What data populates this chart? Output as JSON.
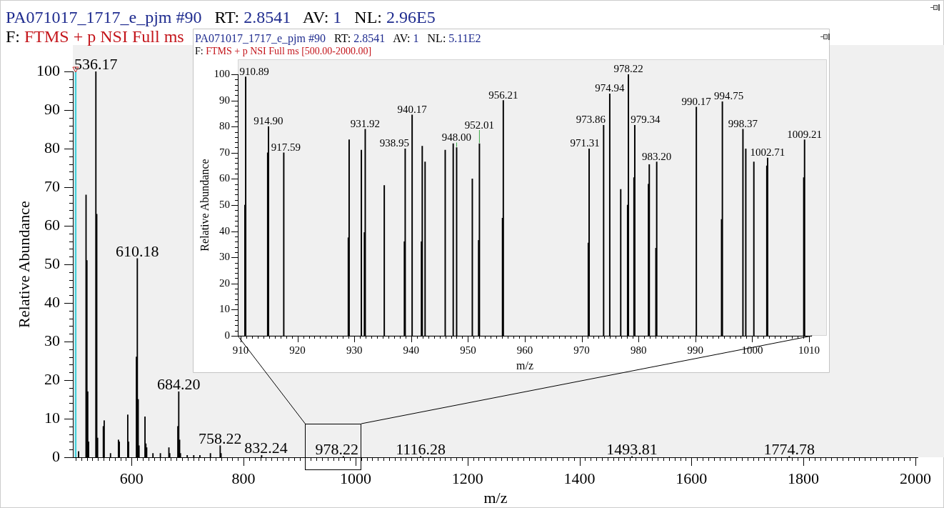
{
  "chart_data": [
    {
      "type": "bar",
      "title": "PA071017_1717_e_pjm #90   RT: 2.8541   AV: 1   NL: 2.96E5",
      "subtitle": "F: FTMS + p NSI Full ms",
      "xlabel": "m/z",
      "ylabel": "Relative Abundance",
      "color": "#000000",
      "x": [
        505.3,
        518.6,
        520.1,
        521.6,
        523.1,
        536.17,
        537.7,
        539.2,
        549.5,
        551,
        562.3,
        576.5,
        578,
        593.1,
        594.6,
        608.6,
        610.18,
        611.7,
        613.2,
        623.9,
        625.4,
        626.9,
        638.1,
        651.4,
        666.6,
        668.1,
        682.6,
        684.2,
        685.7,
        687.2,
        699.3,
        711,
        722,
        740.8,
        758.22,
        759.7,
        832.24,
        978.22,
        1116.28,
        1493.81,
        1774.78
      ],
      "values": [
        1.5,
        68,
        51,
        17,
        4,
        100,
        63,
        5,
        8,
        9.5,
        1,
        4.5,
        4,
        11,
        4,
        26,
        51.5,
        15,
        3,
        10.5,
        3.5,
        2.5,
        1,
        1,
        2.5,
        1,
        8,
        17,
        4.5,
        1,
        0.5,
        0.5,
        0.5,
        1,
        3,
        1,
        0.5,
        0.2,
        0.2,
        0.2,
        0.2
      ],
      "xlim": [
        500,
        2000
      ],
      "ylim": [
        0,
        100
      ],
      "xticks": [
        {
          "value": 500,
          "label": null
        },
        {
          "value": 510,
          "label": null
        },
        {
          "value": 520,
          "label": null
        },
        {
          "value": 530,
          "label": null
        },
        {
          "value": 540,
          "label": null
        },
        {
          "value": 550,
          "label": null
        },
        {
          "value": 560,
          "label": null
        },
        {
          "value": 570,
          "label": null
        },
        {
          "value": 580,
          "label": null
        },
        {
          "value": 590,
          "label": null
        },
        600,
        {
          "value": 610,
          "label": null
        },
        {
          "value": 620,
          "label": null
        },
        {
          "value": 630,
          "label": null
        },
        {
          "value": 640,
          "label": null
        },
        {
          "value": 650,
          "label": null
        },
        {
          "value": 660,
          "label": null
        },
        {
          "value": 670,
          "label": null
        },
        {
          "value": 680,
          "label": null
        },
        {
          "value": 690,
          "label": null
        },
        {
          "value": 700,
          "label": null
        },
        {
          "value": 710,
          "label": null
        },
        {
          "value": 720,
          "label": null
        },
        {
          "value": 730,
          "label": null
        },
        {
          "value": 740,
          "label": null
        },
        {
          "value": 750,
          "label": null
        },
        {
          "value": 760,
          "label": null
        },
        {
          "value": 770,
          "label": null
        },
        {
          "value": 780,
          "label": null
        },
        {
          "value": 790,
          "label": null
        },
        800,
        {
          "value": 810,
          "label": null
        },
        {
          "value": 820,
          "label": null
        },
        {
          "value": 830,
          "label": null
        },
        {
          "value": 840,
          "label": null
        },
        {
          "value": 850,
          "label": null
        },
        {
          "value": 860,
          "label": null
        },
        {
          "value": 870,
          "label": null
        },
        {
          "value": 880,
          "label": null
        },
        {
          "value": 890,
          "label": null
        },
        {
          "value": 900,
          "label": null
        },
        {
          "value": 910,
          "label": null
        },
        {
          "value": 920,
          "label": null
        },
        {
          "value": 930,
          "label": null
        },
        {
          "value": 940,
          "label": null
        },
        {
          "value": 950,
          "label": null
        },
        {
          "value": 960,
          "label": null
        },
        {
          "value": 970,
          "label": null
        },
        {
          "value": 980,
          "label": null
        },
        {
          "value": 990,
          "label": null
        },
        1000,
        {
          "value": 1010,
          "label": null
        },
        {
          "value": 1020,
          "label": null
        },
        {
          "value": 1030,
          "label": null
        },
        {
          "value": 1040,
          "label": null
        },
        {
          "value": 1050,
          "label": null
        },
        {
          "value": 1060,
          "label": null
        },
        {
          "value": 1070,
          "label": null
        },
        {
          "value": 1080,
          "label": null
        },
        {
          "value": 1090,
          "label": null
        },
        {
          "value": 1100,
          "label": null
        },
        {
          "value": 1110,
          "label": null
        },
        {
          "value": 1120,
          "label": null
        },
        {
          "value": 1130,
          "label": null
        },
        {
          "value": 1140,
          "label": null
        },
        {
          "value": 1150,
          "label": null
        },
        {
          "value": 1160,
          "label": null
        },
        {
          "value": 1170,
          "label": null
        },
        {
          "value": 1180,
          "label": null
        },
        {
          "value": 1190,
          "label": null
        },
        1200,
        {
          "value": 1210,
          "label": null
        },
        {
          "value": 1220,
          "label": null
        },
        {
          "value": 1230,
          "label": null
        },
        {
          "value": 1240,
          "label": null
        },
        {
          "value": 1250,
          "label": null
        },
        {
          "value": 1260,
          "label": null
        },
        {
          "value": 1270,
          "label": null
        },
        {
          "value": 1280,
          "label": null
        },
        {
          "value": 1290,
          "label": null
        },
        {
          "value": 1300,
          "label": null
        },
        {
          "value": 1310,
          "label": null
        },
        {
          "value": 1320,
          "label": null
        },
        {
          "value": 1330,
          "label": null
        },
        {
          "value": 1340,
          "label": null
        },
        {
          "value": 1350,
          "label": null
        },
        {
          "value": 1360,
          "label": null
        },
        {
          "value": 1370,
          "label": null
        },
        {
          "value": 1380,
          "label": null
        },
        {
          "value": 1390,
          "label": null
        },
        1400,
        {
          "value": 1410,
          "label": null
        },
        {
          "value": 1420,
          "label": null
        },
        {
          "value": 1430,
          "label": null
        },
        {
          "value": 1440,
          "label": null
        },
        {
          "value": 1450,
          "label": null
        },
        {
          "value": 1460,
          "label": null
        },
        {
          "value": 1470,
          "label": null
        },
        {
          "value": 1480,
          "label": null
        },
        {
          "value": 1490,
          "label": null
        },
        {
          "value": 1500,
          "label": null
        },
        {
          "value": 1510,
          "label": null
        },
        {
          "value": 1520,
          "label": null
        },
        {
          "value": 1530,
          "label": null
        },
        {
          "value": 1540,
          "label": null
        },
        {
          "value": 1550,
          "label": null
        },
        {
          "value": 1560,
          "label": null
        },
        {
          "value": 1570,
          "label": null
        },
        {
          "value": 1580,
          "label": null
        },
        {
          "value": 1590,
          "label": null
        },
        1600,
        {
          "value": 1610,
          "label": null
        },
        {
          "value": 1620,
          "label": null
        },
        {
          "value": 1630,
          "label": null
        },
        {
          "value": 1640,
          "label": null
        },
        {
          "value": 1650,
          "label": null
        },
        {
          "value": 1660,
          "label": null
        },
        {
          "value": 1670,
          "label": null
        },
        {
          "value": 1680,
          "label": null
        },
        {
          "value": 1690,
          "label": null
        },
        {
          "value": 1700,
          "label": null
        },
        {
          "value": 1710,
          "label": null
        },
        {
          "value": 1720,
          "label": null
        },
        {
          "value": 1730,
          "label": null
        },
        {
          "value": 1740,
          "label": null
        },
        {
          "value": 1750,
          "label": null
        },
        {
          "value": 1760,
          "label": null
        },
        {
          "value": 1770,
          "label": null
        },
        {
          "value": 1780,
          "label": null
        },
        {
          "value": 1790,
          "label": null
        },
        1800,
        {
          "value": 1810,
          "label": null
        },
        {
          "value": 1820,
          "label": null
        },
        {
          "value": 1830,
          "label": null
        },
        {
          "value": 1840,
          "label": null
        },
        {
          "value": 1850,
          "label": null
        },
        {
          "value": 1860,
          "label": null
        },
        {
          "value": 1870,
          "label": null
        },
        {
          "value": 1880,
          "label": null
        },
        {
          "value": 1890,
          "label": null
        },
        {
          "value": 1900,
          "label": null
        },
        {
          "value": 1910,
          "label": null
        },
        {
          "value": 1920,
          "label": null
        },
        {
          "value": 1930,
          "label": null
        },
        {
          "value": 1940,
          "label": null
        },
        {
          "value": 1950,
          "label": null
        },
        {
          "value": 1960,
          "label": null
        },
        {
          "value": 1970,
          "label": null
        },
        {
          "value": 1980,
          "label": null
        },
        {
          "value": 1990,
          "label": null
        },
        2000
      ],
      "yticks": [
        0,
        {
          "value": 2,
          "label": null
        },
        {
          "value": 4,
          "label": null
        },
        {
          "value": 6,
          "label": null
        },
        {
          "value": 8,
          "label": null
        },
        10,
        {
          "value": 12,
          "label": null
        },
        {
          "value": 14,
          "label": null
        },
        {
          "value": 16,
          "label": null
        },
        {
          "value": 18,
          "label": null
        },
        20,
        {
          "value": 22,
          "label": null
        },
        {
          "value": 24,
          "label": null
        },
        {
          "value": 26,
          "label": null
        },
        {
          "value": 28,
          "label": null
        },
        30,
        {
          "value": 32,
          "label": null
        },
        {
          "value": 34,
          "label": null
        },
        {
          "value": 36,
          "label": null
        },
        {
          "value": 38,
          "label": null
        },
        40,
        {
          "value": 42,
          "label": null
        },
        {
          "value": 44,
          "label": null
        },
        {
          "value": 46,
          "label": null
        },
        {
          "value": 48,
          "label": null
        },
        50,
        {
          "value": 52,
          "label": null
        },
        {
          "value": 54,
          "label": null
        },
        {
          "value": 56,
          "label": null
        },
        {
          "value": 58,
          "label": null
        },
        60,
        {
          "value": 62,
          "label": null
        },
        {
          "value": 64,
          "label": null
        },
        {
          "value": 66,
          "label": null
        },
        {
          "value": 68,
          "label": null
        },
        70,
        {
          "value": 72,
          "label": null
        },
        {
          "value": 74,
          "label": null
        },
        {
          "value": 76,
          "label": null
        },
        {
          "value": 78,
          "label": null
        },
        80,
        {
          "value": 82,
          "label": null
        },
        {
          "value": 84,
          "label": null
        },
        {
          "value": 86,
          "label": null
        },
        {
          "value": 88,
          "label": null
        },
        90,
        {
          "value": 92,
          "label": null
        },
        {
          "value": 94,
          "label": null
        },
        {
          "value": 96,
          "label": null
        },
        {
          "value": 98,
          "label": null
        },
        100
      ],
      "annotations": [
        {
          "text": "536.17",
          "x": 536.17,
          "y": 100
        },
        {
          "text": "610.18",
          "x": 610.18,
          "y": 51.5
        },
        {
          "text": "684.20",
          "x": 684.2,
          "y": 17
        },
        {
          "text": "758.22",
          "x": 758.22,
          "y": 3
        },
        {
          "text": "832.24",
          "x": 832.24,
          "y": 0.5
        },
        {
          "text": "978.22",
          "x": 978.22,
          "y": 0.2
        },
        {
          "text": "1116.28",
          "x": 1116.28,
          "y": 0.2
        },
        {
          "text": "1493.81",
          "x": 1493.81,
          "y": 0.2
        },
        {
          "text": "1774.78",
          "x": 1774.78,
          "y": 0.2
        }
      ],
      "ref_lines": [
        {
          "axis": "x",
          "value": 500,
          "color": "#48d1dc"
        }
      ]
    },
    {
      "type": "bar",
      "title": "PA071017_1717_e_pjm #90   RT: 2.8541   AV: 1   NL: 5.11E2",
      "subtitle": "F: FTMS + p NSI Full ms [500.00-2000.00]",
      "xlabel": "m/z",
      "ylabel": "Relative Abundance",
      "color": "#000000",
      "x": [
        910.75,
        910.89,
        914.76,
        914.9,
        917.59,
        928.95,
        929.09,
        931.24,
        931.78,
        931.92,
        935.27,
        938.81,
        938.95,
        940.17,
        941.81,
        941.95,
        942.45,
        945.99,
        947.4,
        948,
        950.76,
        951.87,
        952.01,
        956.07,
        956.21,
        971.17,
        971.31,
        973.86,
        974.94,
        976.87,
        978.08,
        978.22,
        979.2,
        979.34,
        981.75,
        981.89,
        983.06,
        983.2,
        990.17,
        994.61,
        994.75,
        998.37,
        998.87,
        1000.29,
        1002.57,
        1002.71,
        1009.07,
        1009.21
      ],
      "values": [
        50,
        99,
        70,
        80,
        70,
        37.5,
        75,
        71,
        39.5,
        79,
        57.5,
        36,
        71.5,
        84.5,
        36,
        72.5,
        66.5,
        71,
        73.5,
        72,
        60,
        36.5,
        73.5,
        45,
        90,
        35.5,
        71.5,
        80.5,
        92.5,
        56,
        50,
        100,
        60.5,
        80.5,
        58,
        65.5,
        33.5,
        66.5,
        87.5,
        44.5,
        89.5,
        79,
        71.5,
        66.5,
        65,
        68,
        60.5,
        75
      ],
      "xlim": [
        910,
        1010
      ],
      "ylim": [
        0,
        100
      ],
      "xticks": [
        910,
        {
          "value": 911,
          "label": null
        },
        {
          "value": 912,
          "label": null
        },
        {
          "value": 913,
          "label": null
        },
        {
          "value": 914,
          "label": null
        },
        {
          "value": 915,
          "label": null
        },
        {
          "value": 916,
          "label": null
        },
        {
          "value": 917,
          "label": null
        },
        {
          "value": 918,
          "label": null
        },
        {
          "value": 919,
          "label": null
        },
        920,
        {
          "value": 921,
          "label": null
        },
        {
          "value": 922,
          "label": null
        },
        {
          "value": 923,
          "label": null
        },
        {
          "value": 924,
          "label": null
        },
        {
          "value": 925,
          "label": null
        },
        {
          "value": 926,
          "label": null
        },
        {
          "value": 927,
          "label": null
        },
        {
          "value": 928,
          "label": null
        },
        {
          "value": 929,
          "label": null
        },
        930,
        {
          "value": 931,
          "label": null
        },
        {
          "value": 932,
          "label": null
        },
        {
          "value": 933,
          "label": null
        },
        {
          "value": 934,
          "label": null
        },
        {
          "value": 935,
          "label": null
        },
        {
          "value": 936,
          "label": null
        },
        {
          "value": 937,
          "label": null
        },
        {
          "value": 938,
          "label": null
        },
        {
          "value": 939,
          "label": null
        },
        940,
        {
          "value": 941,
          "label": null
        },
        {
          "value": 942,
          "label": null
        },
        {
          "value": 943,
          "label": null
        },
        {
          "value": 944,
          "label": null
        },
        {
          "value": 945,
          "label": null
        },
        {
          "value": 946,
          "label": null
        },
        {
          "value": 947,
          "label": null
        },
        {
          "value": 948,
          "label": null
        },
        {
          "value": 949,
          "label": null
        },
        950,
        {
          "value": 951,
          "label": null
        },
        {
          "value": 952,
          "label": null
        },
        {
          "value": 953,
          "label": null
        },
        {
          "value": 954,
          "label": null
        },
        {
          "value": 955,
          "label": null
        },
        {
          "value": 956,
          "label": null
        },
        {
          "value": 957,
          "label": null
        },
        {
          "value": 958,
          "label": null
        },
        {
          "value": 959,
          "label": null
        },
        960,
        {
          "value": 961,
          "label": null
        },
        {
          "value": 962,
          "label": null
        },
        {
          "value": 963,
          "label": null
        },
        {
          "value": 964,
          "label": null
        },
        {
          "value": 965,
          "label": null
        },
        {
          "value": 966,
          "label": null
        },
        {
          "value": 967,
          "label": null
        },
        {
          "value": 968,
          "label": null
        },
        {
          "value": 969,
          "label": null
        },
        970,
        {
          "value": 971,
          "label": null
        },
        {
          "value": 972,
          "label": null
        },
        {
          "value": 973,
          "label": null
        },
        {
          "value": 974,
          "label": null
        },
        {
          "value": 975,
          "label": null
        },
        {
          "value": 976,
          "label": null
        },
        {
          "value": 977,
          "label": null
        },
        {
          "value": 978,
          "label": null
        },
        {
          "value": 979,
          "label": null
        },
        980,
        {
          "value": 981,
          "label": null
        },
        {
          "value": 982,
          "label": null
        },
        {
          "value": 983,
          "label": null
        },
        {
          "value": 984,
          "label": null
        },
        {
          "value": 985,
          "label": null
        },
        {
          "value": 986,
          "label": null
        },
        {
          "value": 987,
          "label": null
        },
        {
          "value": 988,
          "label": null
        },
        {
          "value": 989,
          "label": null
        },
        990,
        {
          "value": 991,
          "label": null
        },
        {
          "value": 992,
          "label": null
        },
        {
          "value": 993,
          "label": null
        },
        {
          "value": 994,
          "label": null
        },
        {
          "value": 995,
          "label": null
        },
        {
          "value": 996,
          "label": null
        },
        {
          "value": 997,
          "label": null
        },
        {
          "value": 998,
          "label": null
        },
        {
          "value": 999,
          "label": null
        },
        1000,
        {
          "value": 1001,
          "label": null
        },
        {
          "value": 1002,
          "label": null
        },
        {
          "value": 1003,
          "label": null
        },
        {
          "value": 1004,
          "label": null
        },
        {
          "value": 1005,
          "label": null
        },
        {
          "value": 1006,
          "label": null
        },
        {
          "value": 1007,
          "label": null
        },
        {
          "value": 1008,
          "label": null
        },
        {
          "value": 1009,
          "label": null
        },
        1010
      ],
      "yticks": [
        0,
        {
          "value": 2,
          "label": null
        },
        {
          "value": 4,
          "label": null
        },
        {
          "value": 6,
          "label": null
        },
        {
          "value": 8,
          "label": null
        },
        10,
        {
          "value": 12,
          "label": null
        },
        {
          "value": 14,
          "label": null
        },
        {
          "value": 16,
          "label": null
        },
        {
          "value": 18,
          "label": null
        },
        20,
        {
          "value": 22,
          "label": null
        },
        {
          "value": 24,
          "label": null
        },
        {
          "value": 26,
          "label": null
        },
        {
          "value": 28,
          "label": null
        },
        30,
        {
          "value": 32,
          "label": null
        },
        {
          "value": 34,
          "label": null
        },
        {
          "value": 36,
          "label": null
        },
        {
          "value": 38,
          "label": null
        },
        40,
        {
          "value": 42,
          "label": null
        },
        {
          "value": 44,
          "label": null
        },
        {
          "value": 46,
          "label": null
        },
        {
          "value": 48,
          "label": null
        },
        50,
        {
          "value": 52,
          "label": null
        },
        {
          "value": 54,
          "label": null
        },
        {
          "value": 56,
          "label": null
        },
        {
          "value": 58,
          "label": null
        },
        60,
        {
          "value": 62,
          "label": null
        },
        {
          "value": 64,
          "label": null
        },
        {
          "value": 66,
          "label": null
        },
        {
          "value": 68,
          "label": null
        },
        70,
        {
          "value": 72,
          "label": null
        },
        {
          "value": 74,
          "label": null
        },
        {
          "value": 76,
          "label": null
        },
        {
          "value": 78,
          "label": null
        },
        80,
        {
          "value": 82,
          "label": null
        },
        {
          "value": 84,
          "label": null
        },
        {
          "value": 86,
          "label": null
        },
        {
          "value": 88,
          "label": null
        },
        90,
        {
          "value": 92,
          "label": null
        },
        {
          "value": 94,
          "label": null
        },
        {
          "value": 96,
          "label": null
        },
        {
          "value": 98,
          "label": null
        },
        100
      ],
      "annotations": [
        {
          "text": "910.89",
          "x": 910.89,
          "y": 99
        },
        {
          "text": "914.90",
          "x": 914.9,
          "y": 80
        },
        {
          "text": "917.59",
          "x": 917.59,
          "y": 70
        },
        {
          "text": "931.92",
          "x": 931.92,
          "y": 79
        },
        {
          "text": "938.95",
          "x": 938.95,
          "y": 71.5
        },
        {
          "text": "940.17",
          "x": 940.17,
          "y": 84.5
        },
        {
          "text": "948.00",
          "x": 948,
          "y": 72
        },
        {
          "text": "952.01",
          "x": 952.01,
          "y": 73.5
        },
        {
          "text": "956.21",
          "x": 956.21,
          "y": 90
        },
        {
          "text": "971.31",
          "x": 971.31,
          "y": 71.5
        },
        {
          "text": "973.86",
          "x": 973.86,
          "y": 80.5
        },
        {
          "text": "974.94",
          "x": 974.94,
          "y": 92.5
        },
        {
          "text": "978.22",
          "x": 978.22,
          "y": 100
        },
        {
          "text": "979.34",
          "x": 979.34,
          "y": 80.5
        },
        {
          "text": "983.20",
          "x": 983.2,
          "y": 66.5
        },
        {
          "text": "990.17",
          "x": 990.17,
          "y": 87.5
        },
        {
          "text": "994.75",
          "x": 994.75,
          "y": 89.5
        },
        {
          "text": "998.37",
          "x": 998.37,
          "y": 79
        },
        {
          "text": "1002.71",
          "x": 1002.71,
          "y": 68
        },
        {
          "text": "1009.21",
          "x": 1009.21,
          "y": 75
        }
      ]
    }
  ]
}
